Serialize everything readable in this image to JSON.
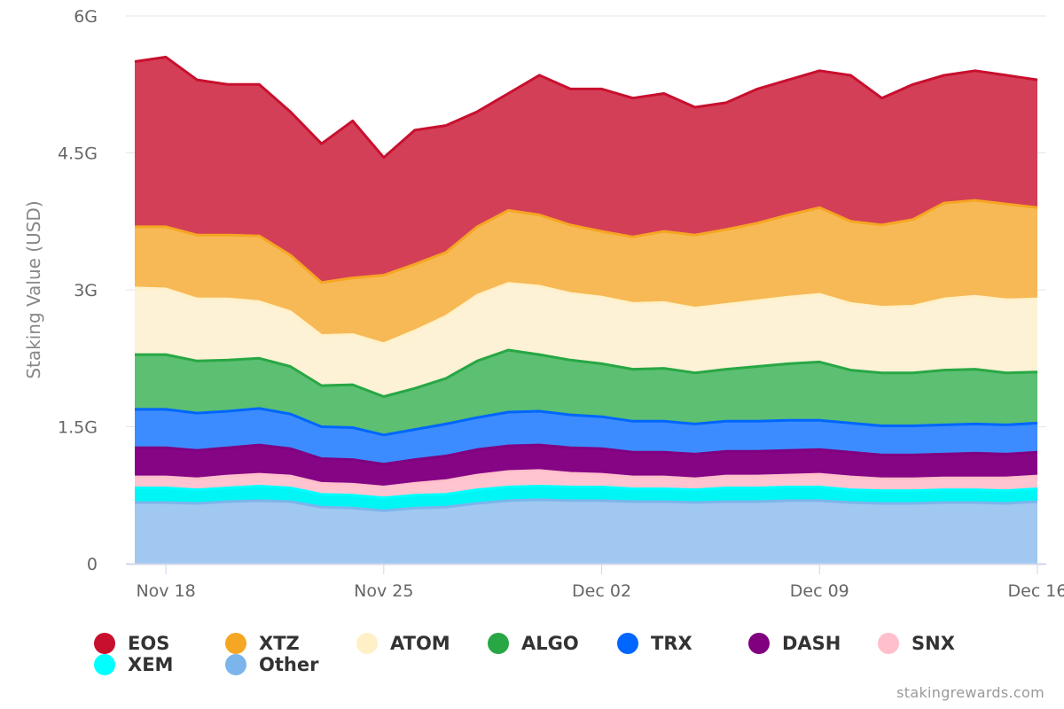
{
  "chart_data": {
    "type": "area",
    "stacked": true,
    "ylabel": "Staking Value (USD)",
    "ylim": [
      0,
      6
    ],
    "yunit": "G",
    "yticks": [
      "0",
      "1.5G",
      "3G",
      "4.5G",
      "6G"
    ],
    "ytick_values": [
      0,
      1.5,
      3,
      4.5,
      6
    ],
    "xticks": [
      "Nov 18",
      "Nov 25",
      "Dec 02",
      "Dec 09",
      "Dec 16"
    ],
    "xtick_dates": [
      "2019-11-18",
      "2019-11-25",
      "2019-12-02",
      "2019-12-09",
      "2019-12-16"
    ],
    "x_start": "2019-11-17",
    "x_end": "2019-12-16",
    "grid": "horizontal",
    "legend_position": "bottom",
    "series": [
      {
        "name": "Other",
        "color": "#7cb5ec",
        "fill": "#a0c8f0",
        "values": [
          0.67,
          0.67,
          0.66,
          0.68,
          0.69,
          0.68,
          0.62,
          0.61,
          0.58,
          0.61,
          0.62,
          0.66,
          0.69,
          0.7,
          0.69,
          0.69,
          0.68,
          0.68,
          0.67,
          0.68,
          0.68,
          0.69,
          0.69,
          0.67,
          0.66,
          0.66,
          0.67,
          0.67,
          0.66,
          0.68
        ]
      },
      {
        "name": "XEM",
        "color": "#00ffff",
        "fill": "#00f5f5",
        "values": [
          0.16,
          0.16,
          0.15,
          0.15,
          0.16,
          0.15,
          0.14,
          0.14,
          0.14,
          0.14,
          0.14,
          0.15,
          0.15,
          0.15,
          0.15,
          0.15,
          0.14,
          0.14,
          0.14,
          0.15,
          0.15,
          0.15,
          0.15,
          0.14,
          0.14,
          0.14,
          0.14,
          0.14,
          0.14,
          0.14
        ]
      },
      {
        "name": "SNX",
        "color": "#ffc0cb",
        "fill": "#ffc4cf",
        "values": [
          0.12,
          0.12,
          0.12,
          0.13,
          0.13,
          0.13,
          0.12,
          0.12,
          0.12,
          0.13,
          0.15,
          0.16,
          0.17,
          0.17,
          0.15,
          0.14,
          0.13,
          0.13,
          0.12,
          0.13,
          0.13,
          0.13,
          0.14,
          0.14,
          0.13,
          0.13,
          0.13,
          0.13,
          0.14,
          0.14
        ]
      },
      {
        "name": "DASH",
        "color": "#800080",
        "fill": "#850585",
        "values": [
          0.32,
          0.32,
          0.31,
          0.31,
          0.32,
          0.3,
          0.27,
          0.27,
          0.25,
          0.26,
          0.27,
          0.28,
          0.28,
          0.28,
          0.28,
          0.28,
          0.27,
          0.27,
          0.27,
          0.27,
          0.27,
          0.27,
          0.27,
          0.27,
          0.26,
          0.26,
          0.26,
          0.27,
          0.26,
          0.26
        ]
      },
      {
        "name": "TRX",
        "color": "#0066ff",
        "fill": "#3d8cff",
        "values": [
          0.42,
          0.42,
          0.41,
          0.4,
          0.4,
          0.38,
          0.35,
          0.35,
          0.32,
          0.33,
          0.35,
          0.35,
          0.37,
          0.37,
          0.36,
          0.35,
          0.34,
          0.34,
          0.33,
          0.33,
          0.33,
          0.33,
          0.32,
          0.32,
          0.32,
          0.32,
          0.32,
          0.32,
          0.32,
          0.32
        ]
      },
      {
        "name": "ALGO",
        "color": "#28a745",
        "fill": "#5cbf72",
        "values": [
          0.6,
          0.6,
          0.57,
          0.56,
          0.55,
          0.52,
          0.45,
          0.47,
          0.42,
          0.45,
          0.5,
          0.62,
          0.68,
          0.62,
          0.6,
          0.58,
          0.57,
          0.58,
          0.56,
          0.57,
          0.6,
          0.62,
          0.64,
          0.58,
          0.58,
          0.58,
          0.6,
          0.6,
          0.57,
          0.56
        ]
      },
      {
        "name": "ATOM",
        "color": "#fff0c8",
        "fill": "#fdf2d6",
        "values": [
          0.73,
          0.72,
          0.68,
          0.67,
          0.62,
          0.6,
          0.55,
          0.55,
          0.58,
          0.63,
          0.68,
          0.72,
          0.73,
          0.75,
          0.73,
          0.73,
          0.72,
          0.72,
          0.71,
          0.71,
          0.72,
          0.73,
          0.74,
          0.73,
          0.72,
          0.73,
          0.78,
          0.8,
          0.8,
          0.8
        ]
      },
      {
        "name": "XTZ",
        "color": "#f5a623",
        "fill": "#f7b955",
        "values": [
          0.67,
          0.68,
          0.7,
          0.7,
          0.72,
          0.62,
          0.58,
          0.62,
          0.75,
          0.73,
          0.7,
          0.75,
          0.8,
          0.78,
          0.75,
          0.72,
          0.73,
          0.78,
          0.8,
          0.82,
          0.85,
          0.9,
          0.95,
          0.9,
          0.9,
          0.95,
          1.05,
          1.05,
          1.05,
          1.0
        ]
      },
      {
        "name": "EOS",
        "color": "#c8102e",
        "fill": "#d43f58",
        "values": [
          1.81,
          1.86,
          1.7,
          1.65,
          1.66,
          1.57,
          1.52,
          1.72,
          1.29,
          1.47,
          1.39,
          1.26,
          1.28,
          1.53,
          1.49,
          1.56,
          1.52,
          1.51,
          1.4,
          1.39,
          1.47,
          1.48,
          1.5,
          1.6,
          1.39,
          1.48,
          1.4,
          1.42,
          1.41,
          1.4
        ]
      }
    ]
  },
  "legend": [
    {
      "label": "EOS",
      "color": "#c8102e"
    },
    {
      "label": "XTZ",
      "color": "#f5a623"
    },
    {
      "label": "ATOM",
      "color": "#fff0c8"
    },
    {
      "label": "ALGO",
      "color": "#28a745"
    },
    {
      "label": "TRX",
      "color": "#0066ff"
    },
    {
      "label": "DASH",
      "color": "#800080"
    },
    {
      "label": "SNX",
      "color": "#ffc0cb"
    },
    {
      "label": "XEM",
      "color": "#00ffff"
    },
    {
      "label": "Other",
      "color": "#7cb5ec"
    }
  ],
  "credit": "stakingrewards.com"
}
